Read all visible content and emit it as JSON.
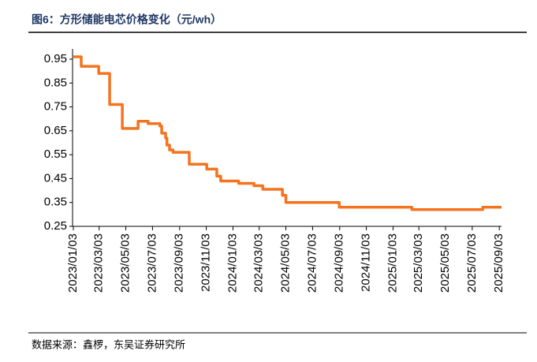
{
  "chart_data": {
    "type": "line",
    "step": "post",
    "title": "图6：方形储能电芯价格变化（元/wh）",
    "source": "数据来源：鑫椤，东吴证券研究所",
    "x": [
      "2023/01/03",
      "2023/01/21",
      "2023/03/02",
      "2023/03/27",
      "2023/04/25",
      "2023/05/31",
      "2023/06/23",
      "2023/07/20",
      "2023/07/24",
      "2023/08/02",
      "2023/08/05",
      "2023/08/11",
      "2023/08/19",
      "2023/09/25",
      "2023/11/04",
      "2023/11/27",
      "2023/12/06",
      "2024/01/16",
      "2024/02/20",
      "2024/03/11",
      "2024/04/25",
      "2024/05/03",
      "2024/09/02",
      "2025/02/15",
      "2025/07/27",
      "2025/09/08"
    ],
    "series": [
      {
        "name": "方形储能电芯价格",
        "color": "#f5731f",
        "values": [
          0.96,
          0.92,
          0.89,
          0.76,
          0.66,
          0.69,
          0.68,
          0.67,
          0.64,
          0.62,
          0.59,
          0.57,
          0.56,
          0.51,
          0.49,
          0.46,
          0.44,
          0.43,
          0.42,
          0.405,
          0.38,
          0.35,
          0.33,
          0.32,
          0.33,
          0.33
        ]
      }
    ],
    "xlim": [
      "2023/01/03",
      "2025/09/08"
    ],
    "xticks": [
      "2023/01/03",
      "2023/03/03",
      "2023/05/03",
      "2023/07/03",
      "2023/09/03",
      "2023/11/03",
      "2024/01/03",
      "2024/03/03",
      "2024/05/03",
      "2024/07/03",
      "2024/09/03",
      "2024/11/03",
      "2025/01/03",
      "2025/03/03",
      "2025/05/03",
      "2025/07/03",
      "2025/09/03"
    ],
    "ylim": [
      0.25,
      0.95
    ],
    "yticks": [
      0.25,
      0.35,
      0.45,
      0.55,
      0.65,
      0.75,
      0.85,
      0.95
    ],
    "grid": false
  }
}
